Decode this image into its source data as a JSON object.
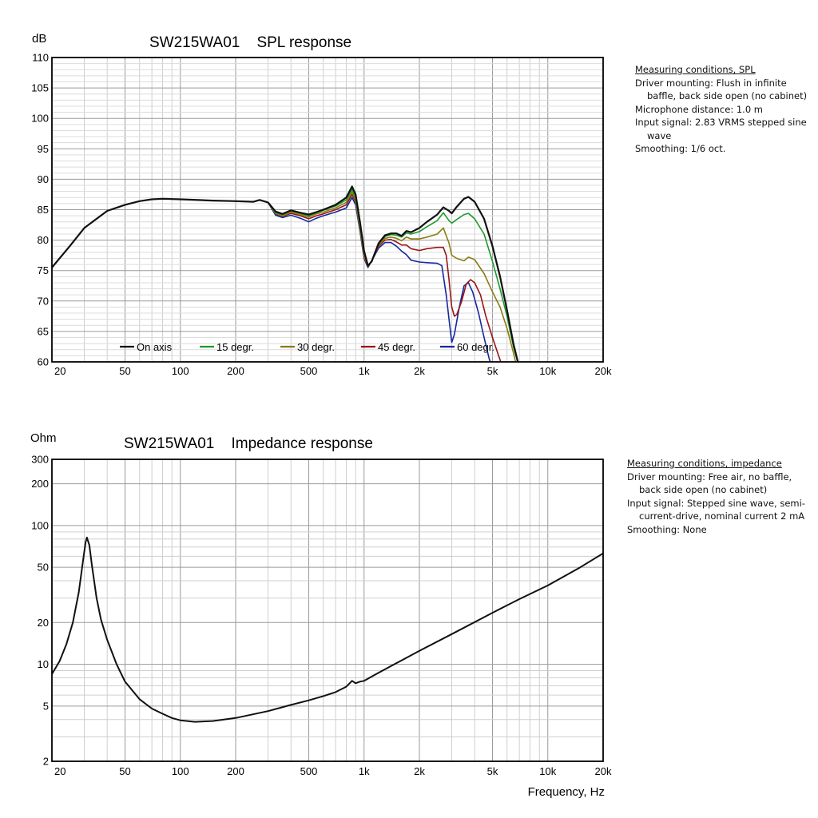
{
  "chart_data": [
    {
      "type": "line",
      "title": "SW215WA01    SPL response",
      "ylabel": "dB",
      "xlabel": "",
      "xscale": "log",
      "xlim": [
        20,
        20000
      ],
      "ylim": [
        60,
        110
      ],
      "grid": true,
      "legend_position": "bottom-inside",
      "x_tick_labels": [
        "20",
        "50",
        "100",
        "200",
        "500",
        "1k",
        "2k",
        "5k",
        "10k",
        "20k"
      ],
      "y_tick_labels": [
        "60",
        "65",
        "70",
        "75",
        "80",
        "85",
        "90",
        "95",
        "100",
        "105",
        "110"
      ],
      "series": [
        {
          "name": "On axis",
          "color": "#111111",
          "points": [
            [
              20,
              75.5
            ],
            [
              25,
              79
            ],
            [
              30,
              82
            ],
            [
              40,
              84.8
            ],
            [
              50,
              85.8
            ],
            [
              60,
              86.4
            ],
            [
              70,
              86.7
            ],
            [
              80,
              86.8
            ],
            [
              100,
              86.7
            ],
            [
              150,
              86.5
            ],
            [
              200,
              86.4
            ],
            [
              250,
              86.3
            ],
            [
              270,
              86.6
            ],
            [
              300,
              86.2
            ],
            [
              330,
              84.7
            ],
            [
              360,
              84.3
            ],
            [
              400,
              84.9
            ],
            [
              450,
              84.5
            ],
            [
              500,
              84.2
            ],
            [
              550,
              84.6
            ],
            [
              600,
              85
            ],
            [
              700,
              85.8
            ],
            [
              800,
              87
            ],
            [
              860,
              88.8
            ],
            [
              900,
              87.5
            ],
            [
              950,
              83
            ],
            [
              1000,
              78.2
            ],
            [
              1050,
              75.8
            ],
            [
              1100,
              76.5
            ],
            [
              1200,
              79.5
            ],
            [
              1300,
              80.8
            ],
            [
              1400,
              81.1
            ],
            [
              1500,
              81.1
            ],
            [
              1600,
              80.7
            ],
            [
              1700,
              81.5
            ],
            [
              1800,
              81.3
            ],
            [
              2000,
              82
            ],
            [
              2200,
              83
            ],
            [
              2500,
              84.2
            ],
            [
              2700,
              85.4
            ],
            [
              2900,
              84.8
            ],
            [
              3000,
              84.4
            ],
            [
              3200,
              85.5
            ],
            [
              3500,
              86.8
            ],
            [
              3700,
              87.1
            ],
            [
              4000,
              86.3
            ],
            [
              4500,
              83.5
            ],
            [
              5000,
              79
            ],
            [
              5500,
              74
            ],
            [
              6000,
              68.5
            ],
            [
              6500,
              63
            ],
            [
              7000,
              59
            ]
          ]
        },
        {
          "name": "15 degr.",
          "color": "#1d9a2c",
          "points": [
            [
              300,
              86.2
            ],
            [
              330,
              84.5
            ],
            [
              360,
              84.2
            ],
            [
              400,
              84.8
            ],
            [
              450,
              84.4
            ],
            [
              500,
              84
            ],
            [
              550,
              84.5
            ],
            [
              600,
              84.9
            ],
            [
              700,
              85.6
            ],
            [
              800,
              86.6
            ],
            [
              860,
              88.3
            ],
            [
              900,
              87
            ],
            [
              950,
              82.5
            ],
            [
              1000,
              77.8
            ],
            [
              1050,
              75.8
            ],
            [
              1100,
              76.6
            ],
            [
              1200,
              79.4
            ],
            [
              1300,
              80.6
            ],
            [
              1400,
              80.9
            ],
            [
              1500,
              80.8
            ],
            [
              1600,
              80.5
            ],
            [
              1700,
              81.2
            ],
            [
              1800,
              81
            ],
            [
              2000,
              81.4
            ],
            [
              2200,
              82.2
            ],
            [
              2500,
              83.2
            ],
            [
              2700,
              84.5
            ],
            [
              2900,
              83.2
            ],
            [
              3000,
              82.8
            ],
            [
              3200,
              83.4
            ],
            [
              3500,
              84.2
            ],
            [
              3700,
              84.4
            ],
            [
              4000,
              83.5
            ],
            [
              4500,
              81
            ],
            [
              5000,
              76.5
            ],
            [
              5500,
              72
            ],
            [
              6000,
              67.5
            ],
            [
              6500,
              62.5
            ],
            [
              7000,
              59
            ]
          ]
        },
        {
          "name": "30 degr.",
          "color": "#8a7d12",
          "points": [
            [
              300,
              86.2
            ],
            [
              330,
              84.4
            ],
            [
              360,
              84
            ],
            [
              400,
              84.6
            ],
            [
              450,
              84.2
            ],
            [
              500,
              83.8
            ],
            [
              550,
              84.3
            ],
            [
              600,
              84.6
            ],
            [
              700,
              85.3
            ],
            [
              800,
              86.2
            ],
            [
              860,
              87.9
            ],
            [
              900,
              86.6
            ],
            [
              950,
              82
            ],
            [
              1000,
              77.5
            ],
            [
              1050,
              75.7
            ],
            [
              1100,
              76.6
            ],
            [
              1200,
              79.2
            ],
            [
              1300,
              80.3
            ],
            [
              1400,
              80.5
            ],
            [
              1500,
              80.3
            ],
            [
              1600,
              79.9
            ],
            [
              1700,
              80.5
            ],
            [
              1800,
              80.2
            ],
            [
              2000,
              80.2
            ],
            [
              2200,
              80.5
            ],
            [
              2500,
              81
            ],
            [
              2700,
              82
            ],
            [
              2900,
              79.5
            ],
            [
              3000,
              77.5
            ],
            [
              3200,
              77
            ],
            [
              3500,
              76.6
            ],
            [
              3700,
              77.2
            ],
            [
              4000,
              76.8
            ],
            [
              4500,
              74.5
            ],
            [
              5000,
              71.5
            ],
            [
              5500,
              69
            ],
            [
              6000,
              65.5
            ],
            [
              6500,
              61.5
            ],
            [
              6800,
              59
            ]
          ]
        },
        {
          "name": "45 degr.",
          "color": "#9b1418",
          "points": [
            [
              300,
              86.2
            ],
            [
              330,
              84.3
            ],
            [
              360,
              83.9
            ],
            [
              400,
              84.4
            ],
            [
              450,
              84
            ],
            [
              500,
              83.5
            ],
            [
              550,
              84
            ],
            [
              600,
              84.3
            ],
            [
              700,
              85
            ],
            [
              800,
              85.8
            ],
            [
              860,
              87.5
            ],
            [
              900,
              86.3
            ],
            [
              950,
              81.8
            ],
            [
              1000,
              77.2
            ],
            [
              1050,
              75.6
            ],
            [
              1100,
              76.6
            ],
            [
              1200,
              79
            ],
            [
              1300,
              80
            ],
            [
              1400,
              80.1
            ],
            [
              1500,
              79.7
            ],
            [
              1600,
              79.2
            ],
            [
              1700,
              79.2
            ],
            [
              1800,
              78.6
            ],
            [
              2000,
              78.3
            ],
            [
              2200,
              78.6
            ],
            [
              2500,
              78.8
            ],
            [
              2700,
              78.8
            ],
            [
              2800,
              77.5
            ],
            [
              2900,
              73.5
            ],
            [
              3000,
              69
            ],
            [
              3100,
              67.5
            ],
            [
              3200,
              67.8
            ],
            [
              3400,
              70
            ],
            [
              3600,
              72.8
            ],
            [
              3800,
              73.5
            ],
            [
              4000,
              73
            ],
            [
              4300,
              71
            ],
            [
              4600,
              67.5
            ],
            [
              5000,
              64
            ],
            [
              5400,
              61
            ],
            [
              5700,
              59
            ]
          ]
        },
        {
          "name": "60 degr.",
          "color": "#1428a0",
          "points": [
            [
              300,
              86.2
            ],
            [
              330,
              84.1
            ],
            [
              360,
              83.7
            ],
            [
              400,
              84.1
            ],
            [
              450,
              83.6
            ],
            [
              500,
              83
            ],
            [
              550,
              83.6
            ],
            [
              600,
              84
            ],
            [
              700,
              84.6
            ],
            [
              800,
              85.3
            ],
            [
              860,
              87
            ],
            [
              900,
              85.8
            ],
            [
              950,
              81.5
            ],
            [
              1000,
              77
            ],
            [
              1050,
              75.5
            ],
            [
              1100,
              76.6
            ],
            [
              1200,
              78.7
            ],
            [
              1300,
              79.6
            ],
            [
              1400,
              79.6
            ],
            [
              1500,
              79
            ],
            [
              1600,
              78.2
            ],
            [
              1700,
              77.6
            ],
            [
              1800,
              76.7
            ],
            [
              2000,
              76.4
            ],
            [
              2200,
              76.3
            ],
            [
              2500,
              76.2
            ],
            [
              2650,
              75.8
            ],
            [
              2800,
              71
            ],
            [
              2900,
              67
            ],
            [
              3000,
              63.2
            ],
            [
              3100,
              64.5
            ],
            [
              3300,
              69
            ],
            [
              3500,
              72.5
            ],
            [
              3700,
              73
            ],
            [
              3900,
              71.5
            ],
            [
              4200,
              68
            ],
            [
              4500,
              64
            ],
            [
              4800,
              60.5
            ],
            [
              5000,
              59
            ]
          ]
        }
      ]
    },
    {
      "type": "line",
      "title": "SW215WA01    Impedance response",
      "ylabel": "Ohm",
      "xlabel": "Frequency, Hz",
      "xscale": "log",
      "yscale": "log",
      "xlim": [
        20,
        20000
      ],
      "ylim": [
        2,
        300
      ],
      "grid": true,
      "x_tick_labels": [
        "20",
        "50",
        "100",
        "200",
        "500",
        "1k",
        "2k",
        "5k",
        "10k",
        "20k"
      ],
      "y_tick_labels": [
        "2",
        "5",
        "10",
        "20",
        "50",
        "100",
        "200",
        "300"
      ],
      "y_tick_values": [
        2,
        5,
        10,
        20,
        50,
        100,
        200,
        300
      ],
      "series": [
        {
          "color": "#111111",
          "points": [
            [
              20,
              8.5
            ],
            [
              22,
              10.5
            ],
            [
              24,
              14
            ],
            [
              26,
              20
            ],
            [
              28,
              33
            ],
            [
              29.5,
              55
            ],
            [
              30.5,
              76
            ],
            [
              31,
              82
            ],
            [
              32,
              72
            ],
            [
              33,
              52
            ],
            [
              35,
              30
            ],
            [
              37,
              21
            ],
            [
              40,
              15
            ],
            [
              45,
              10
            ],
            [
              50,
              7.5
            ],
            [
              60,
              5.6
            ],
            [
              70,
              4.8
            ],
            [
              80,
              4.4
            ],
            [
              90,
              4.1
            ],
            [
              100,
              3.95
            ],
            [
              120,
              3.85
            ],
            [
              150,
              3.9
            ],
            [
              200,
              4.1
            ],
            [
              300,
              4.6
            ],
            [
              400,
              5.1
            ],
            [
              500,
              5.5
            ],
            [
              600,
              5.9
            ],
            [
              700,
              6.3
            ],
            [
              800,
              6.9
            ],
            [
              860,
              7.6
            ],
            [
              900,
              7.3
            ],
            [
              950,
              7.5
            ],
            [
              1000,
              7.6
            ],
            [
              1200,
              8.7
            ],
            [
              1500,
              10.2
            ],
            [
              2000,
              12.5
            ],
            [
              3000,
              16.5
            ],
            [
              5000,
              23.5
            ],
            [
              7000,
              29.5
            ],
            [
              10000,
              37
            ],
            [
              15000,
              50
            ],
            [
              20000,
              63
            ]
          ]
        }
      ]
    }
  ],
  "conditions_spl": {
    "title": "Measuring conditions, SPL",
    "line1": "Driver mounting: Flush in infinite",
    "line2": "baffle, back side open  (no cabinet)",
    "line3": "Microphone distance: 1.0 m",
    "line4": "Input signal: 2.83 VRMS stepped sine",
    "line5": "wave",
    "line6": "Smoothing: 1/6 oct."
  },
  "conditions_impedance": {
    "title": "Measuring conditions, impedance",
    "line1": "Driver mounting: Free air, no baffle,",
    "line2": "back side open (no cabinet)",
    "line3": "Input signal: Stepped sine wave, semi-",
    "line4": "current-drive, nominal current 2 mA",
    "line5": "Smoothing: None"
  }
}
